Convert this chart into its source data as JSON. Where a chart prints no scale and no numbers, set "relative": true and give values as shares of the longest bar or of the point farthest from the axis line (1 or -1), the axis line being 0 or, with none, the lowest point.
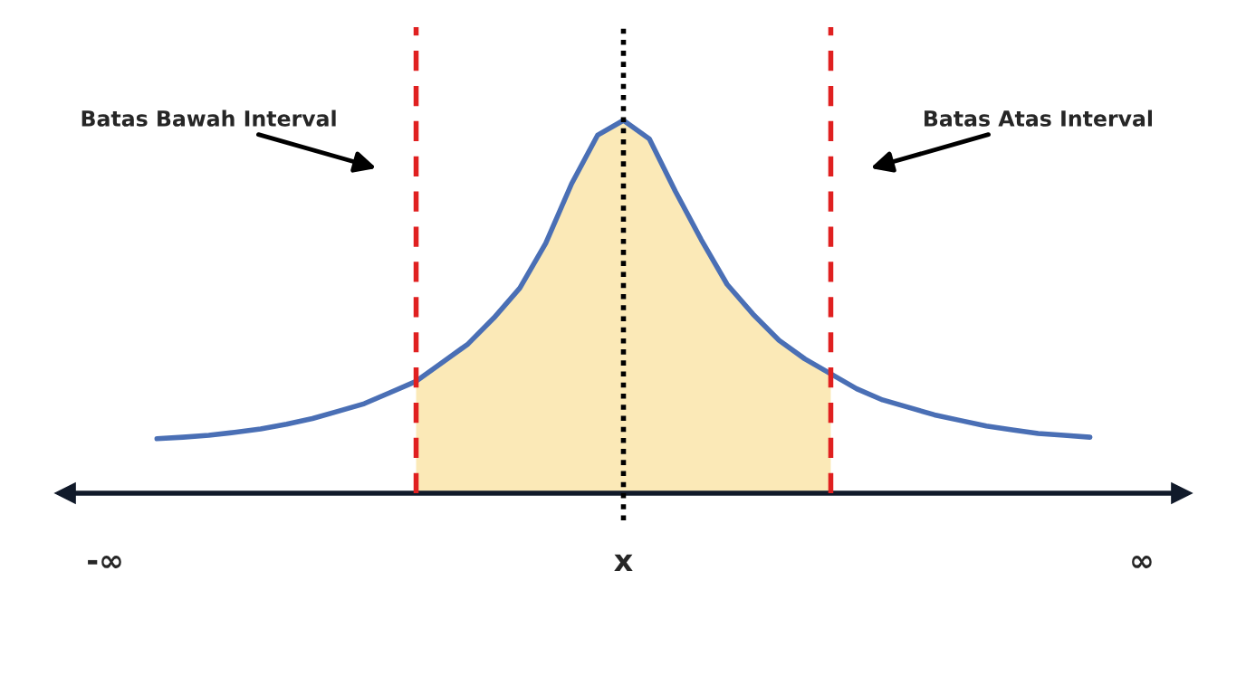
{
  "chart_data": {
    "type": "line",
    "relative": true,
    "tick_labels": "x",
    "categories": [
      "-∞",
      null,
      null,
      null,
      null,
      null,
      null,
      null,
      null,
      null,
      null,
      null,
      null,
      null,
      null,
      null,
      null,
      null,
      null,
      null,
      "x",
      null,
      null,
      null,
      null,
      null,
      null,
      null,
      null,
      null,
      null,
      null,
      null,
      null,
      null,
      null,
      null,
      null,
      null,
      null,
      "∞"
    ],
    "series": [
      {
        "type": "area",
        "color": "#fbe9b7",
        "values": [
          null,
          null,
          null,
          null,
          null,
          null,
          null,
          null,
          null,
          null,
          null,
          null,
          0.3,
          0.35,
          0.4,
          0.47,
          0.55,
          0.67,
          0.83,
          0.96,
          1.0,
          0.95,
          0.81,
          0.68,
          0.56,
          0.48,
          0.41,
          0.36,
          0.32,
          null,
          null,
          null,
          null,
          null,
          null,
          null,
          null,
          null,
          null,
          null,
          null
        ]
      },
      {
        "color": "#4a6fb5",
        "values": [
          null,
          null,
          0.146,
          0.15,
          0.155,
          0.163,
          0.172,
          0.185,
          0.2,
          0.22,
          0.24,
          0.27,
          0.3,
          0.35,
          0.4,
          0.47,
          0.55,
          0.67,
          0.83,
          0.96,
          1.0,
          0.95,
          0.81,
          0.68,
          0.56,
          0.48,
          0.41,
          0.36,
          0.32,
          0.28,
          0.25,
          0.23,
          0.21,
          0.195,
          0.18,
          0.17,
          0.16,
          0.155,
          0.15,
          null,
          null
        ]
      }
    ],
    "annotations": [
      "Batas Bawah Interval",
      "Batas Atas Interval"
    ],
    "ref_lines": [
      {
        "axis": "x",
        "value": "x",
        "color": "#000000",
        "line_style": "dotted"
      }
    ]
  }
}
